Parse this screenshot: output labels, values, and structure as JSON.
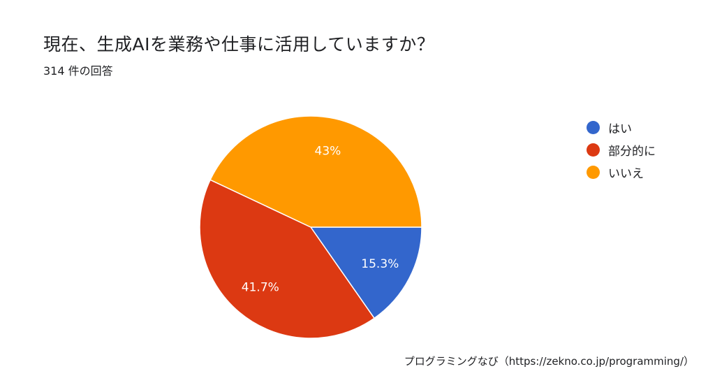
{
  "question": "現在、生成AIを業務や仕事に活用していますか？",
  "responses": "314 件の回答",
  "credit": "プログラミングなび（https://zekno.co.jp/programming/）",
  "chart_data": {
    "type": "pie",
    "categories": [
      "はい",
      "部分的に",
      "いいえ"
    ],
    "values": [
      15.3,
      41.7,
      43
    ],
    "labels": [
      "15.3%",
      "41.7%",
      "43%"
    ],
    "colors": [
      "#3366cc",
      "#dc3912",
      "#ff9900"
    ],
    "legend_position": "right",
    "start": "3 o'clock, clockwise"
  }
}
